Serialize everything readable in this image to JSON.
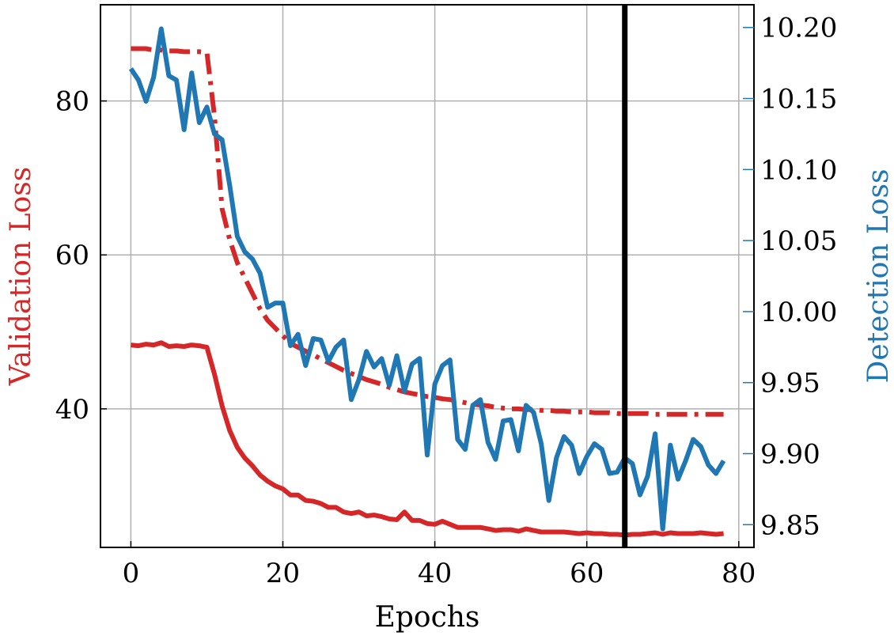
{
  "chart_data": {
    "type": "line",
    "xlabel": "Epochs",
    "ylabel_left": "Validation Loss",
    "ylabel_right": "Detection Loss",
    "xlim": [
      -4,
      82
    ],
    "ylim_left": [
      22,
      92.5
    ],
    "ylim_right": [
      9.834,
      10.216
    ],
    "x_ticks": [
      0,
      20,
      40,
      60,
      80
    ],
    "y_ticks_left": [
      40,
      60,
      80
    ],
    "y_ticks_right": [
      9.85,
      9.9,
      9.95,
      10.0,
      10.05,
      10.1,
      10.15,
      10.2
    ],
    "y_tick_labels_right": [
      "9.85",
      "9.90",
      "9.95",
      "10.00",
      "10.05",
      "10.10",
      "10.15",
      "10.20"
    ],
    "grid": true,
    "vertical_marker_x": 65,
    "colors": {
      "validation": "#d62728",
      "detection": "#1f77b4",
      "marker": "#000000",
      "grid": "#b0b0b0"
    },
    "series": [
      {
        "axis": "left",
        "style": "solid",
        "color": "#d62728",
        "x": [
          0,
          1,
          2,
          3,
          4,
          5,
          6,
          7,
          8,
          9,
          10,
          11,
          12,
          13,
          14,
          15,
          16,
          17,
          18,
          19,
          20,
          21,
          22,
          23,
          24,
          25,
          26,
          27,
          28,
          29,
          30,
          31,
          32,
          33,
          34,
          35,
          36,
          37,
          38,
          39,
          40,
          41,
          42,
          43,
          44,
          45,
          46,
          47,
          48,
          49,
          50,
          51,
          52,
          53,
          54,
          55,
          56,
          57,
          58,
          59,
          60,
          61,
          62,
          63,
          64,
          65,
          66,
          67,
          68,
          69,
          70,
          71,
          72,
          73,
          74,
          75,
          76,
          77,
          78
        ],
        "values": [
          48.3,
          48.2,
          48.4,
          48.3,
          48.6,
          48.1,
          48.2,
          48.1,
          48.3,
          48.2,
          48.0,
          44.5,
          40.4,
          37.2,
          35.0,
          33.6,
          32.6,
          31.4,
          30.6,
          30.0,
          29.6,
          28.8,
          28.8,
          28.1,
          28.0,
          27.7,
          27.2,
          27.2,
          26.6,
          26.4,
          26.6,
          26.1,
          26.2,
          26.0,
          25.7,
          25.6,
          26.6,
          25.5,
          25.5,
          25.1,
          25.0,
          25.4,
          25.0,
          24.6,
          24.6,
          24.6,
          24.6,
          24.4,
          24.2,
          24.3,
          24.3,
          24.1,
          24.4,
          24.2,
          24.0,
          24.0,
          24.0,
          24.0,
          23.9,
          23.8,
          23.9,
          23.8,
          23.8,
          23.7,
          23.7,
          23.6,
          23.7,
          23.7,
          23.8,
          23.9,
          23.7,
          23.9,
          23.8,
          23.8,
          23.8,
          23.9,
          23.8,
          23.7,
          23.8
        ]
      },
      {
        "axis": "left",
        "style": "dashdot",
        "color": "#d62728",
        "x": [
          0,
          1,
          2,
          3,
          4,
          5,
          6,
          7,
          8,
          9,
          10,
          11,
          12,
          13,
          14,
          15,
          16,
          17,
          18,
          19,
          20,
          21,
          22,
          23,
          24,
          25,
          26,
          27,
          28,
          29,
          30,
          31,
          32,
          33,
          34,
          35,
          36,
          37,
          38,
          39,
          40,
          41,
          42,
          43,
          44,
          45,
          46,
          47,
          48,
          49,
          50,
          51,
          52,
          53,
          54,
          55,
          56,
          57,
          58,
          59,
          60,
          61,
          62,
          63,
          64,
          65,
          66,
          67,
          68,
          69,
          70,
          71,
          72,
          73,
          74,
          75,
          76,
          77,
          78
        ],
        "values": [
          86.8,
          86.8,
          86.8,
          86.6,
          86.6,
          86.5,
          86.5,
          86.4,
          86.4,
          86.4,
          86.3,
          78.0,
          66.0,
          62.0,
          59.0,
          57.0,
          55.0,
          53.0,
          51.5,
          50.5,
          49.5,
          48.5,
          48.0,
          47.5,
          47.0,
          46.5,
          46.0,
          45.5,
          45.0,
          44.6,
          44.2,
          43.8,
          43.5,
          43.2,
          42.8,
          42.5,
          42.2,
          42.0,
          41.8,
          41.6,
          41.5,
          41.3,
          41.2,
          41.0,
          40.8,
          40.6,
          40.5,
          40.4,
          40.2,
          40.1,
          40.0,
          40.0,
          39.9,
          39.9,
          39.8,
          39.8,
          39.7,
          39.7,
          39.6,
          39.6,
          39.6,
          39.5,
          39.5,
          39.5,
          39.4,
          39.4,
          39.4,
          39.4,
          39.4,
          39.3,
          39.3,
          39.3,
          39.3,
          39.3,
          39.3,
          39.3,
          39.3,
          39.3,
          39.3
        ]
      },
      {
        "axis": "right",
        "style": "solid",
        "color": "#1f77b4",
        "x": [
          0,
          1,
          2,
          3,
          4,
          5,
          6,
          7,
          8,
          9,
          10,
          11,
          12,
          13,
          14,
          15,
          16,
          17,
          18,
          19,
          20,
          21,
          22,
          23,
          24,
          25,
          26,
          27,
          28,
          29,
          30,
          31,
          32,
          33,
          34,
          35,
          36,
          37,
          38,
          39,
          40,
          41,
          42,
          43,
          44,
          45,
          46,
          47,
          48,
          49,
          50,
          51,
          52,
          53,
          54,
          55,
          56,
          57,
          58,
          59,
          60,
          61,
          62,
          63,
          64,
          65,
          66,
          67,
          68,
          69,
          70,
          71,
          72,
          73,
          74,
          75,
          76,
          77,
          78
        ],
        "values": [
          10.171,
          10.163,
          10.148,
          10.165,
          10.199,
          10.166,
          10.163,
          10.128,
          10.168,
          10.133,
          10.144,
          10.125,
          10.121,
          10.089,
          10.053,
          10.042,
          10.037,
          10.027,
          10.003,
          10.006,
          10.006,
          9.976,
          9.984,
          9.962,
          9.981,
          9.98,
          9.965,
          9.975,
          9.98,
          9.938,
          9.952,
          9.972,
          9.961,
          9.967,
          9.948,
          9.969,
          9.944,
          9.963,
          9.967,
          9.899,
          9.949,
          9.962,
          9.966,
          9.91,
          9.903,
          9.934,
          9.938,
          9.908,
          9.896,
          9.923,
          9.924,
          9.902,
          9.934,
          9.929,
          9.907,
          9.867,
          9.897,
          9.912,
          9.906,
          9.886,
          9.898,
          9.907,
          9.903,
          9.886,
          9.887,
          9.897,
          9.893,
          9.871,
          9.884,
          9.914,
          9.847,
          9.906,
          9.882,
          9.895,
          9.91,
          9.905,
          9.892,
          9.886,
          9.895
        ]
      }
    ]
  }
}
